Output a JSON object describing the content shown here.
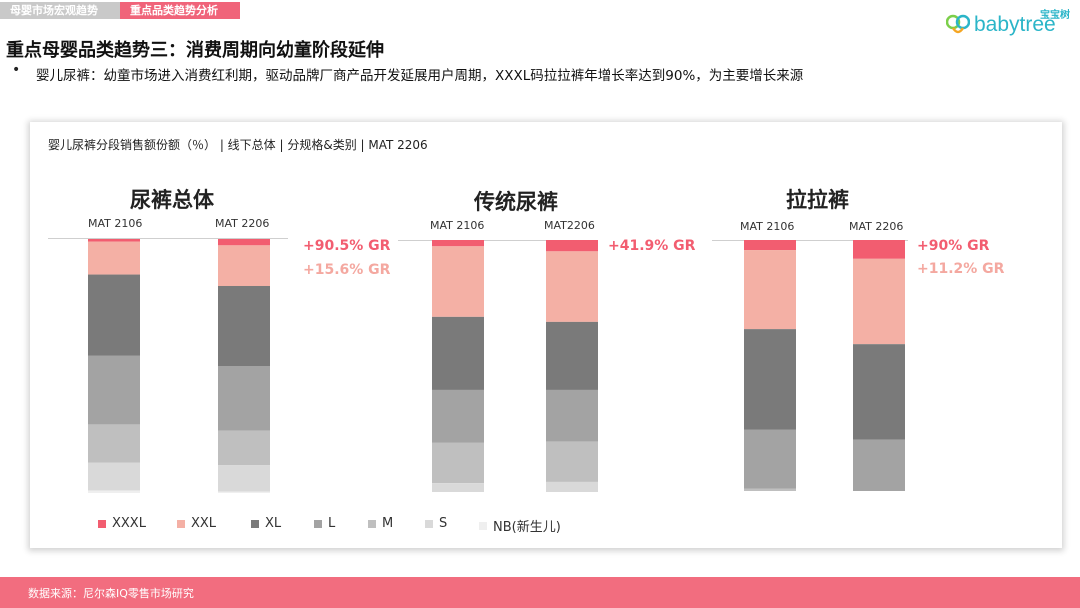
{
  "tabs": [
    "母婴市场宏观趋势",
    "重点品类趋势分析"
  ],
  "logo": {
    "cn": "宝宝树",
    "text": "babytree"
  },
  "title": "重点母婴品类趋势三：消费周期向幼童阶段延伸",
  "bullet": "婴儿尿裤：幼童市场进入消费红利期，驱动品牌厂商产品开发延展用户周期，XXXL码拉拉裤年增长率达到90%，为主要增长来源",
  "bullet_marker": "•",
  "footer": "数据来源：尼尔森IQ零售市场研究",
  "colors": {
    "XXXL": "#f25d70",
    "XXL": "#f4b0a5",
    "XL": "#7a7a7a",
    "L": "#a3a3a3",
    "M": "#bfbfbf",
    "S": "#d9d9d9",
    "NB(新生儿)": "#efefef"
  },
  "chart_data": {
    "type": "bar",
    "stacked": true,
    "title": "婴儿尿裤分段销售额份额（％） | 线下总体 | 分规格&类别 | MAT 2206",
    "segments": [
      "XXXL",
      "XXL",
      "XL",
      "L",
      "M",
      "S",
      "NB(新生儿)"
    ],
    "groups": [
      {
        "name": "尿裤总体",
        "bars": [
          {
            "label": "MAT 2106",
            "values": [
              1,
              13,
              32,
              27,
              15,
              11,
              1
            ]
          },
          {
            "label": "MAT 2206",
            "values": [
              2.5,
              16,
              31.5,
              25.5,
              13.5,
              10.5,
              0.5
            ]
          }
        ],
        "growth": [
          "+90.5% GR",
          "+15.6% GR"
        ]
      },
      {
        "name": "传统尿裤",
        "bars": [
          {
            "label": "MAT 2106",
            "values": [
              2.5,
              28,
              29,
              21,
              16,
              3.5,
              0
            ]
          },
          {
            "label": "MAT2206",
            "values": [
              4.5,
              28,
              27,
              20.5,
              16,
              4,
              0
            ]
          }
        ],
        "growth": [
          "+41.9% GR"
        ]
      },
      {
        "name": "拉拉裤",
        "bars": [
          {
            "label": "MAT 2106",
            "values": [
              4,
              31.5,
              40,
              23.5,
              1,
              0,
              0
            ]
          },
          {
            "label": "MAT 2206",
            "values": [
              7.5,
              34,
              38,
              20.5,
              0,
              0,
              0
            ]
          }
        ],
        "growth": [
          "+90% GR",
          "+11.2% GR"
        ]
      }
    ]
  }
}
